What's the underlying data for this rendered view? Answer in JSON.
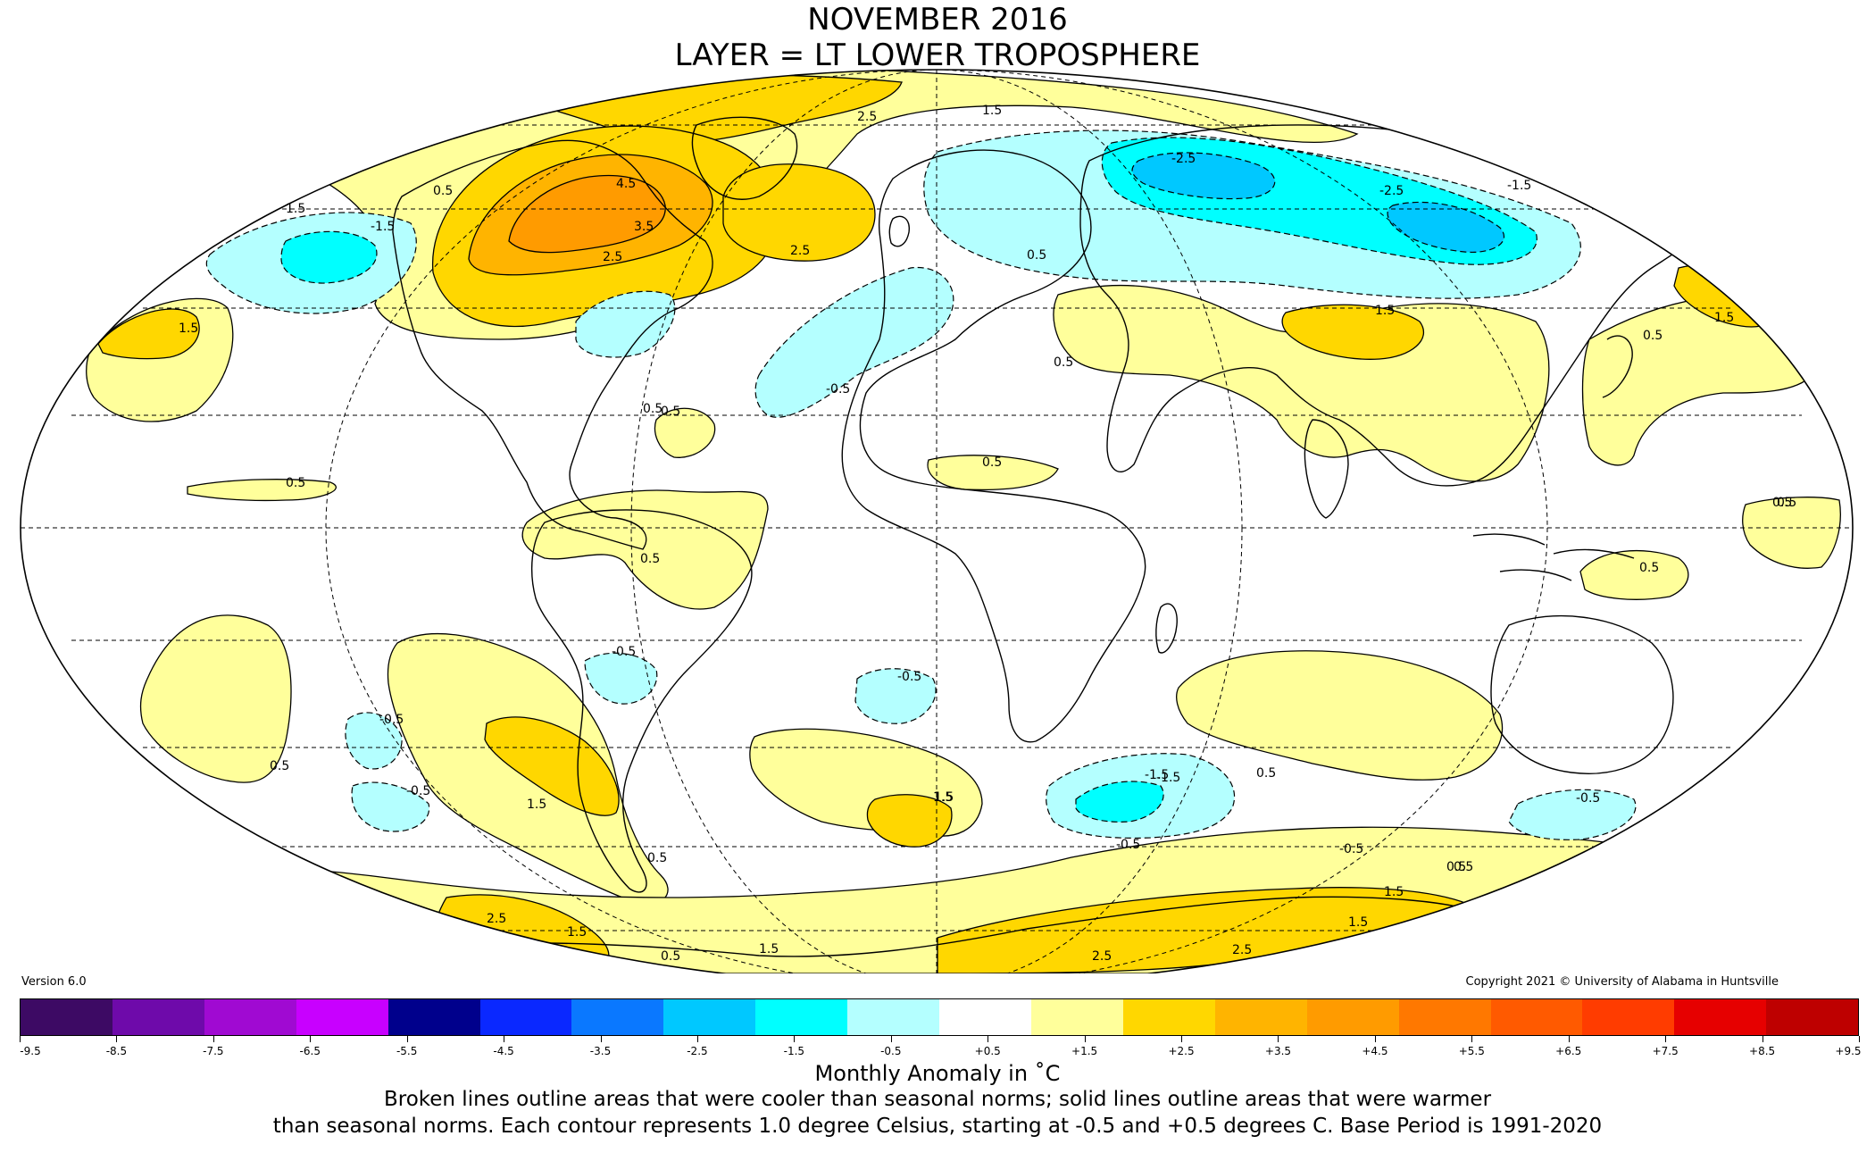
{
  "title": "NOVEMBER 2016",
  "subtitle": "LAYER = LT LOWER TROPOSPHERE",
  "version": "Version 6.0",
  "copyright": "Copyright 2021 © University of Alabama in Huntsville",
  "colorbar": {
    "unit_label": "Monthly Anomaly in ˚C",
    "tick_labels": [
      "-9.5",
      "-8.5",
      "-7.5",
      "-6.5",
      "-5.5",
      "-4.5",
      "-3.5",
      "-2.5",
      "-1.5",
      "-0.5",
      "+0.5",
      "+1.5",
      "+2.5",
      "+3.5",
      "+4.5",
      "+5.5",
      "+6.5",
      "+7.5",
      "+8.5",
      "+9.5"
    ],
    "colors": [
      "#3d0a64",
      "#6e0aaa",
      "#a00ad2",
      "#c800ff",
      "#00008c",
      "#0a28ff",
      "#0a78ff",
      "#00c8ff",
      "#00ffff",
      "#b4ffff",
      "#ffffff",
      "#ffff9b",
      "#ffd700",
      "#ffb400",
      "#ff9b00",
      "#ff7800",
      "#ff5a00",
      "#ff3c00",
      "#e60000",
      "#be0000"
    ]
  },
  "footnote": {
    "line1": "Broken lines outline areas that were cooler than seasonal norms; solid lines outline areas that were warmer",
    "line2": "than seasonal norms. Each contour represents 1.0 degree Celsius, starting at -0.5 and +0.5 degrees C. Base Period is 1991-2020"
  },
  "contour_labels": [
    {
      "id": "l01",
      "text": "1.5"
    },
    {
      "id": "l02",
      "text": "2.5"
    },
    {
      "id": "l03",
      "text": "4.5"
    },
    {
      "id": "l04",
      "text": "3.5"
    },
    {
      "id": "l05",
      "text": "2.5"
    },
    {
      "id": "l06",
      "text": "2.5"
    },
    {
      "id": "l07",
      "text": "-1.5"
    },
    {
      "id": "l08",
      "text": "1.5"
    },
    {
      "id": "l09",
      "text": "0.5"
    },
    {
      "id": "l10",
      "text": "1.5"
    },
    {
      "id": "l11",
      "text": "-2.5"
    },
    {
      "id": "l12",
      "text": "-2.5"
    },
    {
      "id": "l13",
      "text": "-1.5"
    },
    {
      "id": "l14",
      "text": "0.5"
    },
    {
      "id": "l15",
      "text": "-0.5"
    },
    {
      "id": "l16",
      "text": "0.5"
    },
    {
      "id": "l17",
      "text": "0.5"
    },
    {
      "id": "l18",
      "text": "0.5"
    },
    {
      "id": "l19",
      "text": "0.5"
    },
    {
      "id": "l20",
      "text": "1.5"
    },
    {
      "id": "l21",
      "text": "0.5"
    },
    {
      "id": "l22",
      "text": "1.5"
    },
    {
      "id": "l23",
      "text": "0.5"
    },
    {
      "id": "l24",
      "text": "0.5"
    },
    {
      "id": "l25",
      "text": "0.5"
    },
    {
      "id": "l26",
      "text": "-0.5"
    },
    {
      "id": "l27",
      "text": "-0.5"
    },
    {
      "id": "l28",
      "text": "-0.5"
    },
    {
      "id": "l29",
      "text": "-0.5"
    },
    {
      "id": "l30",
      "text": "0.5"
    },
    {
      "id": "l31",
      "text": "1.5"
    },
    {
      "id": "l32",
      "text": "1.5"
    },
    {
      "id": "l33",
      "text": "0.5"
    },
    {
      "id": "l34",
      "text": "-1.5"
    },
    {
      "id": "l35",
      "text": "-0.5"
    },
    {
      "id": "l36",
      "text": "-0.5"
    },
    {
      "id": "l37",
      "text": "0.5"
    },
    {
      "id": "l38",
      "text": "-0.5"
    },
    {
      "id": "l39",
      "text": "0.5"
    },
    {
      "id": "l40",
      "text": "1.5"
    },
    {
      "id": "l41",
      "text": "2.5"
    },
    {
      "id": "l42",
      "text": "1.5"
    },
    {
      "id": "l43",
      "text": "0.5"
    },
    {
      "id": "l44",
      "text": "1.5"
    },
    {
      "id": "l45",
      "text": "2.5"
    },
    {
      "id": "l46",
      "text": "2.5"
    },
    {
      "id": "l47",
      "text": "1.5"
    },
    {
      "id": "l48",
      "text": "1.5"
    },
    {
      "id": "l49",
      "text": "0.5"
    },
    {
      "id": "l50",
      "text": "0.5"
    },
    {
      "id": "l51",
      "text": "0.5"
    },
    {
      "id": "l52",
      "text": "-1.5"
    }
  ]
}
